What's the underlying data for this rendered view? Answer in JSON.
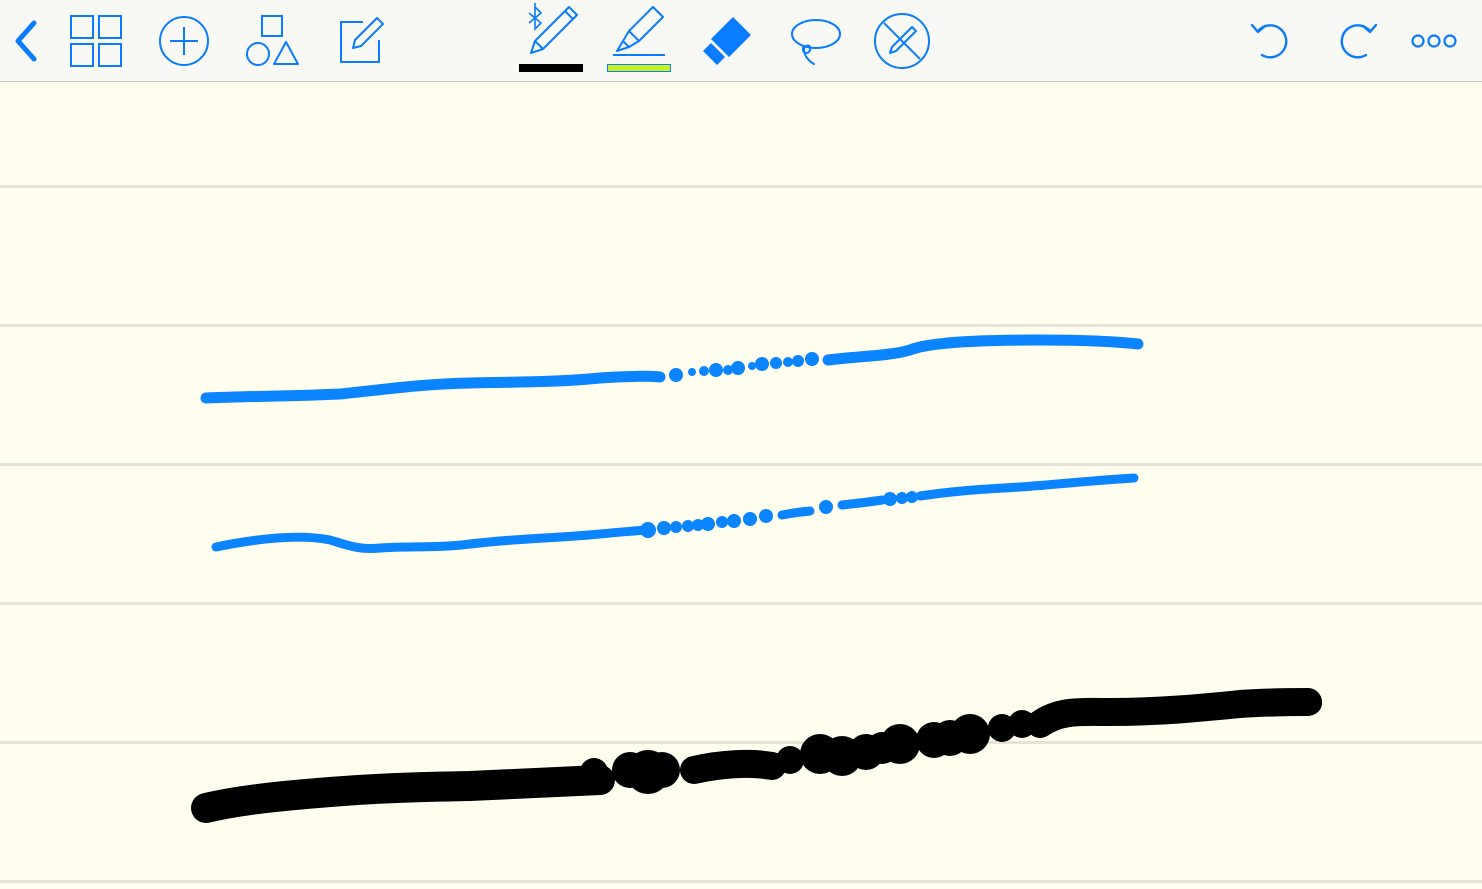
{
  "toolbar": {
    "accent": "#0a7cff",
    "pen_color": "#000000",
    "highlighter_color": "#c8f21e",
    "buttons_left": [
      "back-icon",
      "thumbnails-icon",
      "add-icon",
      "shapes-icon",
      "compose-icon"
    ],
    "buttons_center": [
      "bluetooth-pen-icon",
      "highlighter-icon",
      "eraser-icon",
      "lasso-icon",
      "no-palm-icon"
    ],
    "buttons_right": [
      "undo-icon",
      "redo-icon",
      "more-icon"
    ]
  },
  "page": {
    "paper_color": "#fffdee",
    "rule_color": "#e6e3d6",
    "stroke_colors": [
      "#0a84ff",
      "#0a84ff",
      "#000000"
    ]
  }
}
